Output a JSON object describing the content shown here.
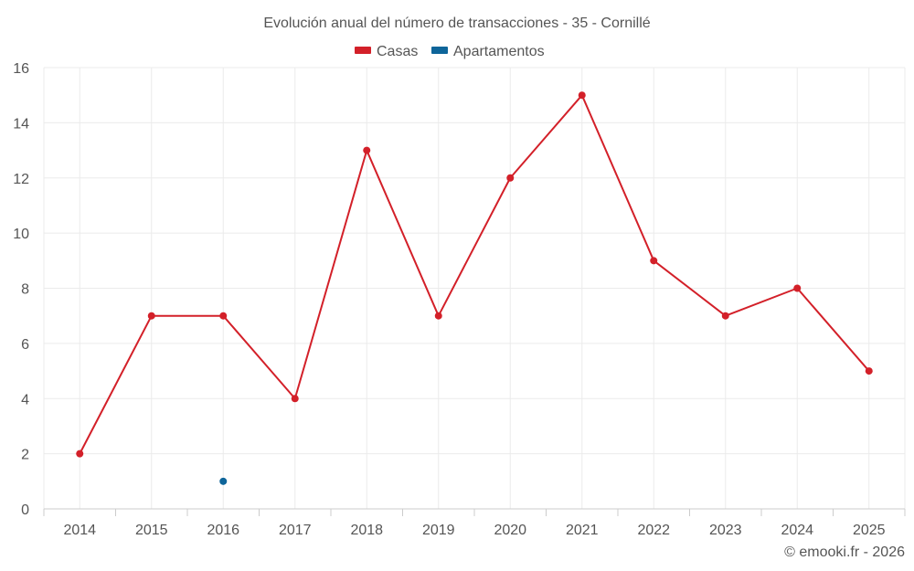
{
  "chart_data": {
    "type": "line",
    "title": "Evolución anual del número de transacciones - 35 - Cornillé",
    "categories": [
      "2014",
      "2015",
      "2016",
      "2017",
      "2018",
      "2019",
      "2020",
      "2021",
      "2022",
      "2023",
      "2024",
      "2025"
    ],
    "series": [
      {
        "name": "Casas",
        "color": "#d32029",
        "values": [
          2,
          7,
          7,
          4,
          13,
          7,
          12,
          15,
          9,
          7,
          8,
          5
        ]
      },
      {
        "name": "Apartamentos",
        "color": "#0e659a",
        "values": [
          null,
          null,
          1,
          null,
          null,
          null,
          null,
          null,
          null,
          null,
          null,
          null
        ]
      }
    ],
    "ylim": [
      0,
      16
    ],
    "yticks": [
      0,
      2,
      4,
      6,
      8,
      10,
      12,
      14,
      16
    ],
    "xlabel": "",
    "ylabel": "",
    "grid": true,
    "legend_position": "top-center"
  },
  "credit": "© emooki.fr - 2026"
}
